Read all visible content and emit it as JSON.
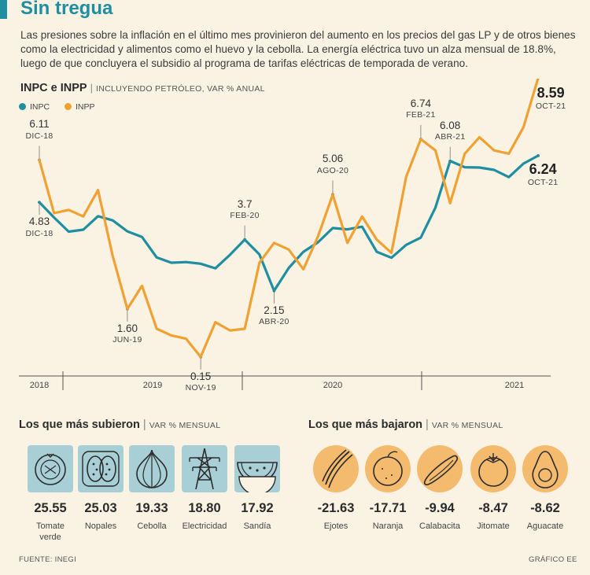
{
  "title": "Sin tregua",
  "intro": "Las presiones sobre la inflación en el último mes provinieron del aumento en los precios del gas LP  y de otros bienes como la electricidad y alimentos como el huevo y la cebolla. La energía eléctrica tuvo un alza mensual de 18.8%, luego de que concluyera el subsidio al programa de tarifas eléctricas de temporada de verano.",
  "chart_header": {
    "main": "INPC e INPP",
    "sub": "INCLUYENDO PETRÓLEO, VAR % ANUAL"
  },
  "legend": [
    {
      "name": "INPC",
      "color": "#1f8ea1"
    },
    {
      "name": "INPP",
      "color": "#f0a132"
    }
  ],
  "annotations": [
    {
      "value": "6.11",
      "date": "DIC-18"
    },
    {
      "value": "4.83",
      "date": "DIC-18"
    },
    {
      "value": "1.60",
      "date": "JUN-19"
    },
    {
      "value": "0.15",
      "date": "NOV-19"
    },
    {
      "value": "3.7",
      "date": "FEB-20"
    },
    {
      "value": "2.15",
      "date": "ABR-20"
    },
    {
      "value": "5.06",
      "date": "AGO-20"
    },
    {
      "value": "6.74",
      "date": "FEB-21"
    },
    {
      "value": "6.08",
      "date": "ABR-21"
    },
    {
      "value": "8.59",
      "date": "OCT-21"
    },
    {
      "value": "6.24",
      "date": "OCT-21"
    }
  ],
  "chart_data": {
    "type": "line",
    "x": [
      "DIC-18",
      "ENE-19",
      "FEB-19",
      "MAR-19",
      "ABR-19",
      "MAY-19",
      "JUN-19",
      "JUL-19",
      "AGO-19",
      "SEP-19",
      "OCT-19",
      "NOV-19",
      "DIC-19",
      "ENE-20",
      "FEB-20",
      "MAR-20",
      "ABR-20",
      "MAY-20",
      "JUN-20",
      "JUL-20",
      "AGO-20",
      "SEP-20",
      "OCT-20",
      "NOV-20",
      "DIC-20",
      "ENE-21",
      "FEB-21",
      "MAR-21",
      "ABR-21",
      "MAY-21",
      "JUN-21",
      "JUL-21",
      "AGO-21",
      "SEP-21",
      "OCT-21"
    ],
    "x_axis_labels": [
      "2018",
      "2019",
      "2020",
      "2021"
    ],
    "series": [
      {
        "name": "INPC",
        "color": "#1f8ea1",
        "values": [
          4.83,
          4.37,
          3.94,
          4.0,
          4.41,
          4.28,
          3.95,
          3.78,
          3.16,
          3.0,
          3.02,
          2.97,
          2.83,
          3.24,
          3.7,
          3.25,
          2.15,
          2.84,
          3.33,
          3.62,
          4.05,
          4.01,
          4.09,
          3.33,
          3.15,
          3.54,
          3.76,
          4.67,
          6.08,
          5.89,
          5.88,
          5.81,
          5.59,
          6.0,
          6.24
        ]
      },
      {
        "name": "INPP",
        "color": "#f0a132",
        "values": [
          6.11,
          4.5,
          4.6,
          4.4,
          5.2,
          3.2,
          1.6,
          2.3,
          1.0,
          0.8,
          0.7,
          0.15,
          1.2,
          0.95,
          1.0,
          3.0,
          3.6,
          3.4,
          2.8,
          3.8,
          5.06,
          3.6,
          4.4,
          3.7,
          3.3,
          5.6,
          6.74,
          6.4,
          4.8,
          6.3,
          6.8,
          6.4,
          6.3,
          7.1,
          8.59
        ]
      }
    ],
    "ylim": [
      0,
      9.2
    ],
    "grid": false
  },
  "subieron": {
    "title": "Los que más subieron",
    "sub": "VAR % MENSUAL",
    "items": [
      {
        "value": "25.55",
        "name": "Tomate verde",
        "icon": "tomatillo-icon"
      },
      {
        "value": "25.03",
        "name": "Nopales",
        "icon": "nopal-icon"
      },
      {
        "value": "19.33",
        "name": "Cebolla",
        "icon": "onion-icon"
      },
      {
        "value": "18.80",
        "name": "Electricidad",
        "icon": "power-tower-icon"
      },
      {
        "value": "17.92",
        "name": "Sandía",
        "icon": "watermelon-icon"
      }
    ]
  },
  "bajaron": {
    "title": "Los que más bajaron",
    "sub": "VAR % MENSUAL",
    "items": [
      {
        "value": "-21.63",
        "name": "Ejotes",
        "icon": "green-beans-icon"
      },
      {
        "value": "-17.71",
        "name": "Naranja",
        "icon": "orange-icon"
      },
      {
        "value": "-9.94",
        "name": "Calabacita",
        "icon": "zucchini-icon"
      },
      {
        "value": "-8.47",
        "name": "Jitomate",
        "icon": "tomato-icon"
      },
      {
        "value": "-8.62",
        "name": "Aguacate",
        "icon": "avocado-icon"
      }
    ]
  },
  "footer": {
    "source": "FUENTE: INEGI",
    "credit": "GRÁFICO EE"
  }
}
